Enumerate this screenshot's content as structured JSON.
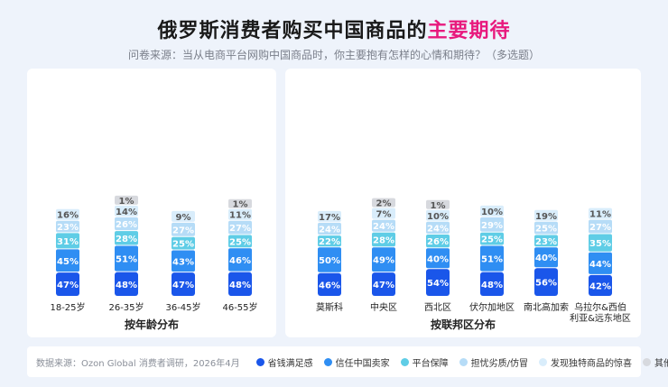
{
  "title": {
    "main": "俄罗斯消费者购买中国商品的",
    "highlight": "主要期待"
  },
  "subtitle": "问卷来源：当从电商平台网购中国商品时，你主要抱有怎样的心情和期待？（多选题）",
  "source": "数据来源：Ozon Global 消费者调研，2026年4月",
  "colors": {
    "省钱满足感": "#1a56ea",
    "信任中国卖家": "#2f8ef3",
    "平台保障": "#5fcde6",
    "担忧劣质/仿冒": "#b6dcf7",
    "发现独特商品的惊喜": "#d9edfb",
    "其他": "#d7d9de"
  },
  "chart_data": [
    {
      "type": "bar",
      "stacked": true,
      "title": "按年龄分布",
      "categories": [
        "18-25岁",
        "26-35岁",
        "36-45岁",
        "46-55岁"
      ],
      "series": [
        {
          "name": "省钱满足感",
          "values": [
            47,
            48,
            47,
            48
          ]
        },
        {
          "name": "信任中国卖家",
          "values": [
            45,
            51,
            43,
            46
          ]
        },
        {
          "name": "平台保障",
          "values": [
            31,
            28,
            25,
            25
          ]
        },
        {
          "name": "担忧劣质/仿冒",
          "values": [
            23,
            26,
            27,
            27
          ]
        },
        {
          "name": "发现独特商品的惊喜",
          "values": [
            16,
            14,
            9,
            11
          ]
        },
        {
          "name": "其他",
          "values": [
            null,
            1,
            null,
            1
          ]
        }
      ]
    },
    {
      "type": "bar",
      "stacked": true,
      "title": "按联邦区分布",
      "categories": [
        "莫斯科",
        "中央区",
        "西北区",
        "伏尔加地区",
        "南北高加索",
        "乌拉尔&西伯利亚&远东地区"
      ],
      "series": [
        {
          "name": "省钱满足感",
          "values": [
            46,
            47,
            54,
            48,
            56,
            42
          ]
        },
        {
          "name": "信任中国卖家",
          "values": [
            50,
            49,
            40,
            51,
            40,
            44
          ]
        },
        {
          "name": "平台保障",
          "values": [
            22,
            28,
            26,
            25,
            23,
            35
          ]
        },
        {
          "name": "担忧劣质/仿冒",
          "values": [
            24,
            24,
            24,
            29,
            25,
            27
          ]
        },
        {
          "name": "发现独特商品的惊喜",
          "values": [
            17,
            7,
            10,
            10,
            19,
            11
          ]
        },
        {
          "name": "其他",
          "values": [
            null,
            2,
            1,
            null,
            null,
            null
          ]
        }
      ]
    }
  ]
}
